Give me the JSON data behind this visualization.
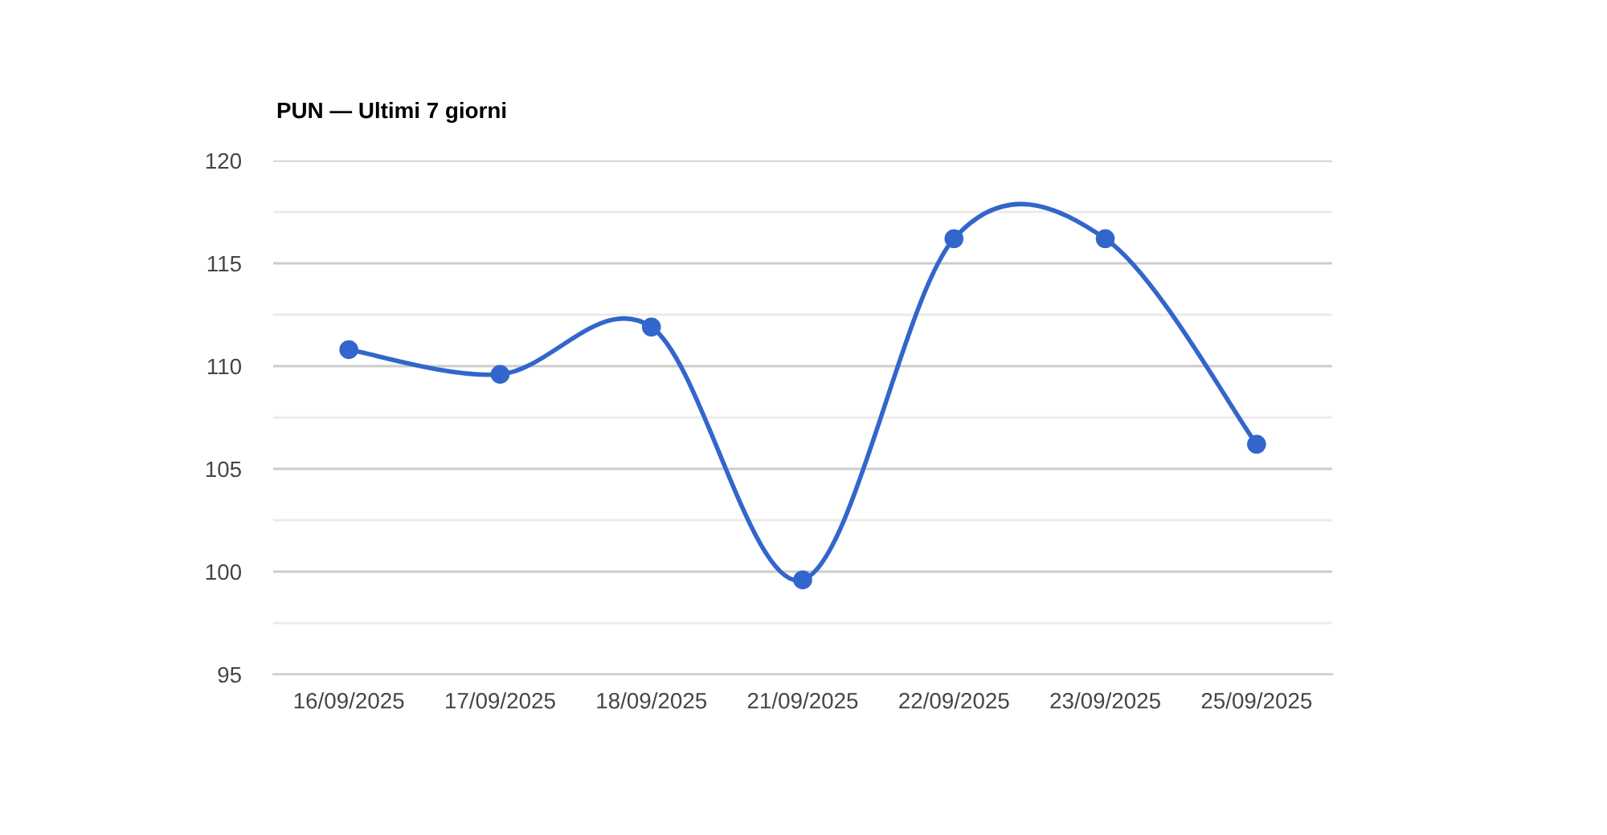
{
  "chart_data": {
    "type": "line",
    "title": "PUN — Ultimi 7 giorni",
    "categories": [
      "16/09/2025",
      "17/09/2025",
      "18/09/2025",
      "21/09/2025",
      "22/09/2025",
      "23/09/2025",
      "25/09/2025"
    ],
    "series": [
      {
        "color": "#3366cc",
        "values": [
          110.8,
          109.6,
          111.9,
          99.6,
          116.2,
          116.2,
          106.2
        ]
      }
    ],
    "ylim": [
      95,
      120
    ],
    "yticks": [
      95,
      100,
      105,
      110,
      115,
      120
    ],
    "grid": "y",
    "marker": "circle",
    "line_style": "solid"
  }
}
